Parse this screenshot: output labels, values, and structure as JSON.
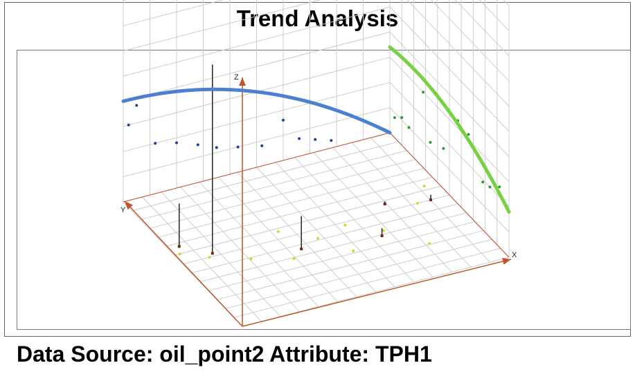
{
  "title": "Trend Analysis",
  "caption": "Data Source: oil_point2 Attribute: TPH1",
  "colors": {
    "xz_trend": "#4a80cf",
    "yz_trend": "#77d142",
    "sample_stick": "#222222",
    "axis": "#c0542b",
    "grid": "#cccccc",
    "projection_xz": "#1b3ca0",
    "projection_yz": "#2e9a35",
    "projection_xy": "#d8d43a"
  },
  "chart_data": {
    "type": "scatter",
    "subtype": "3d-trend-analysis",
    "axes": {
      "x": "X",
      "y": "Y",
      "z": "Z"
    },
    "grid": true,
    "series": [],
    "samples": [
      {
        "x": 0.12,
        "y": 0.52,
        "z": 0.75
      },
      {
        "x": 0.04,
        "y": 0.62,
        "z": 0.17
      },
      {
        "x": 0.4,
        "y": 0.4,
        "z": 0.13
      },
      {
        "x": 0.68,
        "y": 0.35,
        "z": 0.03
      },
      {
        "x": 0.78,
        "y": 0.55,
        "z": 0.01
      },
      {
        "x": 0.93,
        "y": 0.5,
        "z": 0.02
      }
    ],
    "xz_projection": [
      {
        "x": 0.02,
        "z": 0.3
      },
      {
        "x": 0.05,
        "z": 0.37
      },
      {
        "x": 0.12,
        "z": 0.2
      },
      {
        "x": 0.2,
        "z": 0.18
      },
      {
        "x": 0.28,
        "z": 0.15
      },
      {
        "x": 0.35,
        "z": 0.12
      },
      {
        "x": 0.43,
        "z": 0.1
      },
      {
        "x": 0.52,
        "z": 0.08
      },
      {
        "x": 0.6,
        "z": 0.16
      },
      {
        "x": 0.66,
        "z": 0.07
      },
      {
        "x": 0.72,
        "z": 0.05
      },
      {
        "x": 0.78,
        "z": 0.03
      },
      {
        "x": 0.2,
        "z": 0.98
      }
    ],
    "yz_projection": [
      {
        "y": 0.08,
        "z": 0.24
      },
      {
        "y": 0.16,
        "z": 0.2
      },
      {
        "y": 0.22,
        "z": 0.19
      },
      {
        "y": 0.34,
        "z": 0.32
      },
      {
        "y": 0.43,
        "z": 0.33
      },
      {
        "y": 0.55,
        "z": 0.16
      },
      {
        "y": 0.66,
        "z": 0.13
      },
      {
        "y": 0.72,
        "z": 0.3
      },
      {
        "y": 0.84,
        "z": 0.1
      },
      {
        "y": 0.9,
        "z": 0.11
      },
      {
        "y": 0.96,
        "z": 0.08
      },
      {
        "y": 0.7,
        "z": 0.93
      }
    ],
    "xy_projection": [
      {
        "x": 0.02,
        "y": 0.57
      },
      {
        "x": 0.1,
        "y": 0.5
      },
      {
        "x": 0.22,
        "y": 0.42
      },
      {
        "x": 0.35,
        "y": 0.35
      },
      {
        "x": 0.38,
        "y": 0.55
      },
      {
        "x": 0.48,
        "y": 0.44
      },
      {
        "x": 0.55,
        "y": 0.3
      },
      {
        "x": 0.6,
        "y": 0.48
      },
      {
        "x": 0.7,
        "y": 0.38
      },
      {
        "x": 0.8,
        "y": 0.22
      },
      {
        "x": 0.88,
        "y": 0.5
      },
      {
        "x": 0.95,
        "y": 0.6
      }
    ],
    "trends": {
      "xz": {
        "x": [
          0.0,
          0.5,
          1.0
        ],
        "z": [
          0.4,
          0.3,
          0.0
        ]
      },
      "yz": {
        "y": [
          0.0,
          0.5,
          1.0
        ],
        "z": [
          0.18,
          0.33,
          0.34
        ]
      }
    }
  }
}
